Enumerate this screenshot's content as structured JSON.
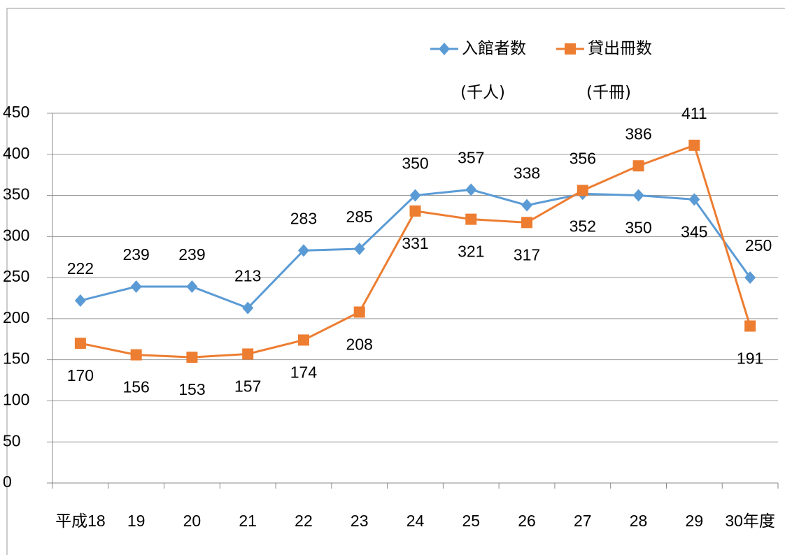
{
  "chart_data": {
    "type": "line",
    "categories": [
      "平成18",
      "19",
      "20",
      "21",
      "22",
      "23",
      "24",
      "25",
      "26",
      "27",
      "28",
      "29",
      "30年度"
    ],
    "series": [
      {
        "name": "入館者数",
        "color": "#5b9bd5",
        "values": [
          222,
          239,
          239,
          213,
          283,
          285,
          350,
          357,
          338,
          352,
          350,
          345,
          250
        ]
      },
      {
        "name": "貸出冊数",
        "color": "#ed7d31",
        "values": [
          170,
          156,
          153,
          157,
          174,
          208,
          331,
          321,
          317,
          356,
          386,
          411,
          191
        ]
      }
    ],
    "annotations": [
      "(千人)",
      "(千冊)"
    ],
    "ylim": [
      0,
      450
    ],
    "yticks": [
      0,
      50,
      100,
      150,
      200,
      250,
      300,
      350,
      400,
      450
    ],
    "grid": true,
    "legend": "top"
  }
}
